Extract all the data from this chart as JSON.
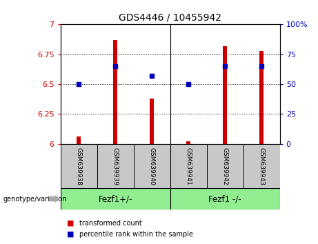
{
  "title": "GDS4446 / 10455942",
  "samples": [
    "GSM639938",
    "GSM639939",
    "GSM639940",
    "GSM639941",
    "GSM639942",
    "GSM639943"
  ],
  "red_values": [
    6.06,
    6.87,
    6.38,
    6.02,
    6.82,
    6.78
  ],
  "blue_pct": [
    50,
    65,
    57,
    50,
    65,
    65
  ],
  "ymin": 6.0,
  "ymax": 7.0,
  "yticks": [
    6.0,
    6.25,
    6.5,
    6.75,
    7.0
  ],
  "ytick_labels": [
    "6",
    "6.25",
    "6.5",
    "6.75",
    "7"
  ],
  "y2min": 0,
  "y2max": 100,
  "y2ticks": [
    0,
    25,
    50,
    75,
    100
  ],
  "y2tick_labels": [
    "0",
    "25",
    "50",
    "75",
    "100%"
  ],
  "bar_color": "#CC0000",
  "dot_color": "#0000BB",
  "group1_label": "Fezf1+/-",
  "group2_label": "Fezf1 -/-",
  "group1_indices": [
    0,
    1,
    2
  ],
  "group2_indices": [
    3,
    4,
    5
  ],
  "group_bg_color": "#90EE90",
  "sample_bg_color": "#C8C8C8",
  "legend_red": "transformed count",
  "legend_blue": "percentile rank within the sample",
  "bar_width": 0.12
}
